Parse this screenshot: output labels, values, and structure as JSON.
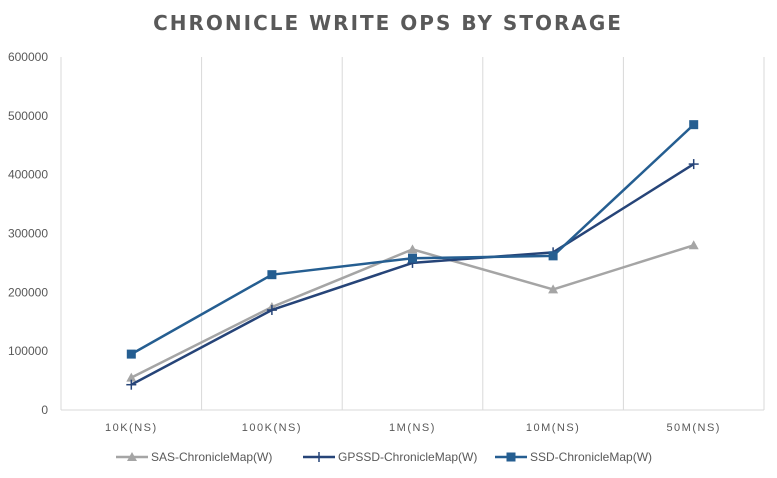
{
  "chart_data": {
    "type": "line",
    "title": "CHRONICLE WRITE OPS BY STORAGE",
    "xlabel": "",
    "ylabel": "",
    "categories": [
      "10K(NS)",
      "100K(NS)",
      "1M(NS)",
      "10M(NS)",
      "50M(NS)"
    ],
    "ylim": [
      0,
      600000
    ],
    "yticks": [
      0,
      100000,
      200000,
      300000,
      400000,
      500000,
      600000
    ],
    "grid": "vertical category gridlines",
    "legend_position": "bottom",
    "series": [
      {
        "name": "SAS-ChronicleMap(W)",
        "values": [
          55000,
          175000,
          273000,
          205000,
          280000
        ],
        "color": "#a5a5a5",
        "marker": "triangle"
      },
      {
        "name": "GPSSD-ChronicleMap(W)",
        "values": [
          43000,
          170000,
          250000,
          268000,
          418000
        ],
        "color": "#264478",
        "marker": "plus"
      },
      {
        "name": "SSD-ChronicleMap(W)",
        "values": [
          95000,
          230000,
          258000,
          262000,
          485000
        ],
        "color": "#255e91",
        "marker": "square"
      }
    ]
  }
}
